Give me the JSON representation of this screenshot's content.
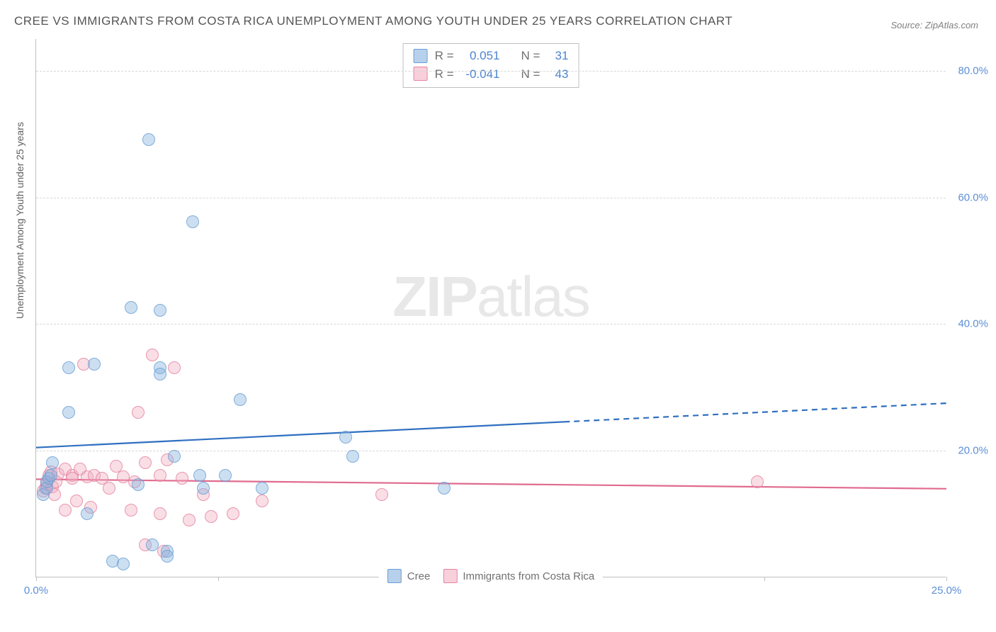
{
  "title": "CREE VS IMMIGRANTS FROM COSTA RICA UNEMPLOYMENT AMONG YOUTH UNDER 25 YEARS CORRELATION CHART",
  "source": "Source: ZipAtlas.com",
  "ylabel": "Unemployment Among Youth under 25 years",
  "watermark_bold": "ZIP",
  "watermark_light": "atlas",
  "chart": {
    "type": "scatter",
    "background_color": "#ffffff",
    "grid_color": "#d8d8d8",
    "axis_color": "#bfbfbf",
    "tick_label_color": "#5b8fd6",
    "tick_fontsize": 15,
    "title_fontsize": 17,
    "title_color": "#555555",
    "xlim": [
      0,
      25
    ],
    "ylim": [
      0,
      85
    ],
    "xticks": [
      0,
      5,
      10,
      15,
      20,
      25
    ],
    "xtick_labels": [
      "0.0%",
      "",
      "",
      "",
      "",
      "25.0%"
    ],
    "yticks": [
      20,
      40,
      60,
      80
    ],
    "ytick_labels": [
      "20.0%",
      "40.0%",
      "60.0%",
      "80.0%"
    ],
    "marker_diameter": 18,
    "marker_opacity": 0.85
  },
  "series": {
    "blue": {
      "name": "Cree",
      "fill_color": "rgba(135,179,224,0.5)",
      "stroke_color": "#6a9fd4",
      "R": "0.051",
      "N": "31",
      "regression": {
        "x1": 0,
        "y1": 20.5,
        "x2": 25,
        "y2": 27.5,
        "solid_until_x": 14.5,
        "color": "#2f6fc0",
        "width": 2
      },
      "points": [
        [
          0.2,
          13
        ],
        [
          0.3,
          14
        ],
        [
          0.3,
          15
        ],
        [
          0.35,
          15.5
        ],
        [
          0.4,
          16
        ],
        [
          0.45,
          18
        ],
        [
          0.9,
          33
        ],
        [
          0.9,
          26
        ],
        [
          1.4,
          10
        ],
        [
          1.6,
          33.5
        ],
        [
          2.1,
          2.5
        ],
        [
          2.4,
          2
        ],
        [
          2.6,
          42.5
        ],
        [
          2.8,
          14.5
        ],
        [
          3.2,
          5
        ],
        [
          3.1,
          69
        ],
        [
          3.4,
          42
        ],
        [
          3.4,
          33
        ],
        [
          3.4,
          32
        ],
        [
          3.6,
          4
        ],
        [
          3.6,
          3.2
        ],
        [
          3.8,
          19
        ],
        [
          4.3,
          56
        ],
        [
          4.5,
          16
        ],
        [
          4.6,
          14
        ],
        [
          5.2,
          16
        ],
        [
          5.6,
          28
        ],
        [
          6.2,
          14
        ],
        [
          8.5,
          22
        ],
        [
          8.7,
          19
        ],
        [
          11.2,
          14
        ]
      ]
    },
    "pink": {
      "name": "Immigrants from Costa Rica",
      "fill_color": "rgba(240,170,190,0.45)",
      "stroke_color": "#e5839f",
      "R": "-0.041",
      "N": "43",
      "regression": {
        "x1": 0,
        "y1": 15.5,
        "x2": 25,
        "y2": 14,
        "solid_until_x": 25,
        "color": "#e06b8f",
        "width": 2
      },
      "points": [
        [
          0.2,
          13.5
        ],
        [
          0.25,
          14
        ],
        [
          0.3,
          14.5
        ],
        [
          0.3,
          15
        ],
        [
          0.35,
          16
        ],
        [
          0.4,
          16.5
        ],
        [
          0.45,
          14.2
        ],
        [
          0.5,
          13
        ],
        [
          0.55,
          15
        ],
        [
          0.6,
          16.2
        ],
        [
          0.8,
          17
        ],
        [
          0.8,
          10.5
        ],
        [
          1.0,
          16
        ],
        [
          1.0,
          15.5
        ],
        [
          1.1,
          12
        ],
        [
          1.2,
          17
        ],
        [
          1.3,
          33.5
        ],
        [
          1.4,
          15.8
        ],
        [
          1.5,
          11
        ],
        [
          1.6,
          16
        ],
        [
          1.8,
          15.5
        ],
        [
          2.0,
          14
        ],
        [
          2.2,
          17.5
        ],
        [
          2.4,
          15.8
        ],
        [
          2.6,
          10.5
        ],
        [
          2.7,
          15
        ],
        [
          2.8,
          26
        ],
        [
          3.0,
          5
        ],
        [
          3.0,
          18
        ],
        [
          3.2,
          35
        ],
        [
          3.4,
          16
        ],
        [
          3.4,
          10
        ],
        [
          3.5,
          4
        ],
        [
          3.6,
          18.5
        ],
        [
          3.8,
          33
        ],
        [
          4.0,
          15.5
        ],
        [
          4.2,
          9
        ],
        [
          4.6,
          13
        ],
        [
          4.8,
          9.5
        ],
        [
          5.4,
          10
        ],
        [
          6.2,
          12
        ],
        [
          9.5,
          13
        ],
        [
          19.8,
          15
        ]
      ]
    }
  },
  "stats_box": {
    "border_color": "#c0c0c0",
    "rows": [
      {
        "swatch": "blue",
        "R_label": "R =",
        "R_value": "0.051",
        "N_label": "N =",
        "N_value": "31"
      },
      {
        "swatch": "pink",
        "R_label": "R =",
        "R_value": "-0.041",
        "N_label": "N =",
        "N_value": "43"
      }
    ]
  },
  "bottom_legend": [
    {
      "swatch": "blue",
      "label": "Cree"
    },
    {
      "swatch": "pink",
      "label": "Immigrants from Costa Rica"
    }
  ]
}
